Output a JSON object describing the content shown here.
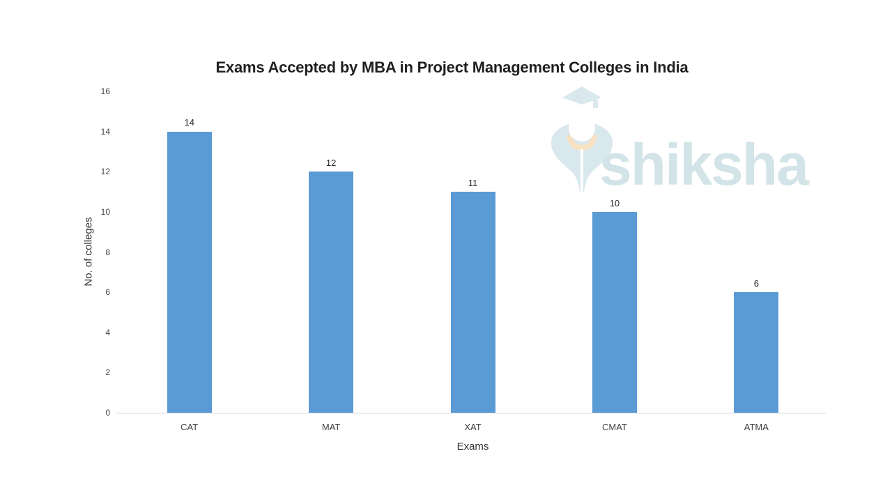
{
  "chart_data": {
    "type": "bar",
    "title": "Exams Accepted by MBA in Project Management Colleges in India",
    "categories": [
      "CAT",
      "MAT",
      "XAT",
      "CMAT",
      "ATMA"
    ],
    "values": [
      14,
      12,
      11,
      10,
      6
    ],
    "xlabel": "Exams",
    "ylabel": "No. of colleges",
    "ylim": [
      0,
      16
    ],
    "yticks": [
      0,
      2,
      4,
      6,
      8,
      10,
      12,
      14,
      16
    ],
    "grid": false,
    "legend": "none",
    "bar_color": "#5b9bd5",
    "axis_line_color": "#d9d9d9"
  },
  "watermark": {
    "text": "shiksha",
    "logo": "graduation-cap-and-pen-nib",
    "logo_color": "#d9e8ec",
    "accent_color": "#f8e1c2",
    "text_color": "#d3e4e8"
  }
}
